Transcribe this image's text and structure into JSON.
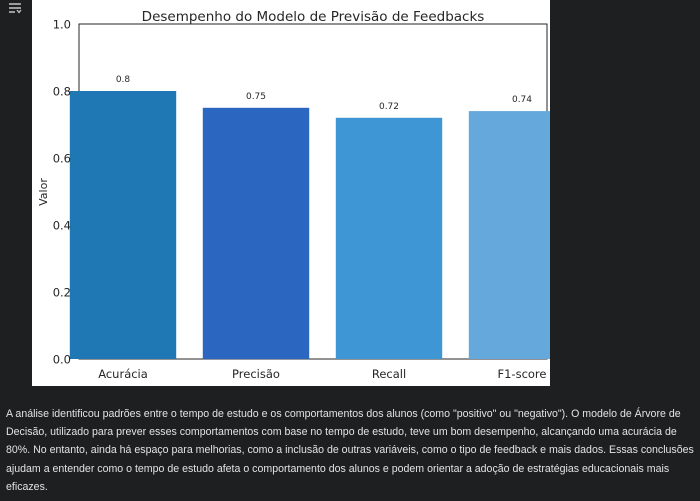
{
  "output_icon": "collapse-output-icon",
  "colors": {
    "page_background": "#1e1f20",
    "figure_background": "#ffffff",
    "text": "#e3e3e3",
    "bars": [
      "#1f77b4",
      "#2b66c1",
      "#3e97d4",
      "#64a8dc"
    ]
  },
  "chart_data": {
    "type": "bar",
    "title": "Desempenho do Modelo de Previsão de Feedbacks",
    "xlabel": "",
    "ylabel": "Valor",
    "categories": [
      "Acurácia",
      "Precisão",
      "Recall",
      "F1-score"
    ],
    "values": [
      0.8,
      0.75,
      0.72,
      0.74
    ],
    "value_labels": [
      "0.8",
      "0.75",
      "0.72",
      "0.74"
    ],
    "ylim": [
      0,
      1.0
    ],
    "yticks": [
      "0.0",
      "0.2",
      "0.4",
      "0.6",
      "0.8",
      "1.0"
    ],
    "grid": false,
    "legend": "none"
  },
  "explanation": "A análise identificou padrões entre o tempo de estudo e os comportamentos dos alunos (como \"positivo\" ou \"negativo\"). O modelo de Árvore de Decisão, utilizado para prever esses comportamentos com base no tempo de estudo, teve um bom desempenho, alcançando uma acurácia de 80%. No entanto, ainda há espaço para melhorias, como a inclusão de outras variáveis, como o tipo de feedback e mais dados. Essas conclusões ajudam a entender como o tempo de estudo afeta o comportamento dos alunos e podem orientar a adoção de estratégias educacionais mais eficazes."
}
